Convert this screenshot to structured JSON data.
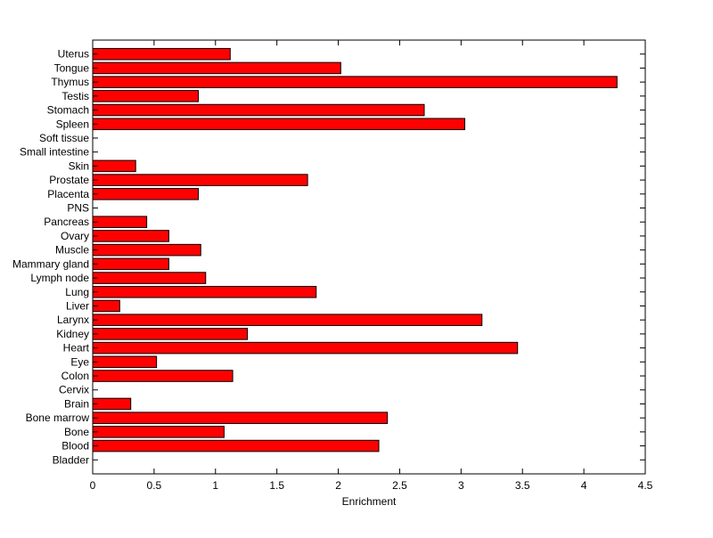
{
  "chart_data": {
    "type": "bar",
    "orientation": "horizontal",
    "title": "",
    "xlabel": "Enrichment",
    "ylabel": "",
    "xlim": [
      0,
      4.5
    ],
    "xticks": [
      "0",
      "0.5",
      "1",
      "1.5",
      "2",
      "2.5",
      "3",
      "3.5",
      "4",
      "4.5"
    ],
    "grid": false,
    "bar_color": "#ff0000",
    "categories": [
      "Bladder",
      "Blood",
      "Bone",
      "Bone marrow",
      "Brain",
      "Cervix",
      "Colon",
      "Eye",
      "Heart",
      "Kidney",
      "Larynx",
      "Liver",
      "Lung",
      "Lymph node",
      "Mammary gland",
      "Muscle",
      "Ovary",
      "Pancreas",
      "PNS",
      "Placenta",
      "Prostate",
      "Skin",
      "Small intestine",
      "Soft tissue",
      "Spleen",
      "Stomach",
      "Testis",
      "Thymus",
      "Tongue",
      "Uterus"
    ],
    "values": [
      0,
      2.33,
      1.07,
      2.4,
      0.31,
      0,
      1.14,
      0.52,
      3.46,
      1.26,
      3.17,
      0.22,
      1.82,
      0.92,
      0.62,
      0.88,
      0.62,
      0.44,
      0,
      0.86,
      1.75,
      0.35,
      0,
      0,
      3.03,
      2.7,
      0.86,
      4.27,
      2.02,
      1.12
    ]
  }
}
